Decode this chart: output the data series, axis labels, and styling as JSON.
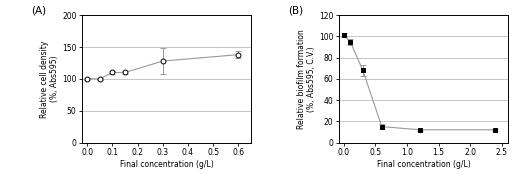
{
  "panel_A": {
    "label": "(A)",
    "x": [
      0,
      0.05,
      0.1,
      0.15,
      0.3,
      0.6
    ],
    "y": [
      100,
      100,
      110,
      110,
      128,
      138
    ],
    "yerr": [
      2,
      2,
      3,
      3,
      20,
      5
    ],
    "marker": "o",
    "marker_face": "white",
    "marker_edge": "black",
    "line_color": "#999999",
    "xlabel": "Final concentration (g/L)",
    "ylabel": "Relative cell density\n(%, Abs595)",
    "xlim": [
      -0.02,
      0.65
    ],
    "ylim": [
      0,
      200
    ],
    "yticks": [
      0,
      50,
      100,
      150,
      200
    ],
    "xticks": [
      0,
      0.1,
      0.2,
      0.3,
      0.4,
      0.5,
      0.6
    ],
    "grid_yticks": [
      50,
      100,
      150
    ]
  },
  "panel_B": {
    "label": "(B)",
    "x": [
      0,
      0.1,
      0.3,
      0.6,
      1.2,
      2.4
    ],
    "y": [
      101,
      95,
      68,
      15,
      12,
      12
    ],
    "yerr": [
      2,
      3,
      5,
      2,
      1,
      1
    ],
    "marker": "s",
    "marker_face": "black",
    "marker_edge": "black",
    "line_color": "#999999",
    "xlabel": "Final concentration (g/L)",
    "ylabel": "Relative biofilm formation\n(%, Abs595, C.V.)",
    "xlim": [
      -0.08,
      2.6
    ],
    "ylim": [
      0,
      120
    ],
    "yticks": [
      0,
      20,
      40,
      60,
      80,
      100,
      120
    ],
    "xticks": [
      0,
      0.5,
      1,
      1.5,
      2,
      2.5
    ],
    "grid_yticks": [
      20,
      40,
      60,
      80,
      100
    ]
  },
  "font_size_label": 5.5,
  "font_size_tick": 5.5,
  "font_size_panel": 7.5,
  "line_width": 0.8,
  "marker_size": 3.5,
  "grid_color": "#bbbbbb",
  "background_color": "#ffffff"
}
